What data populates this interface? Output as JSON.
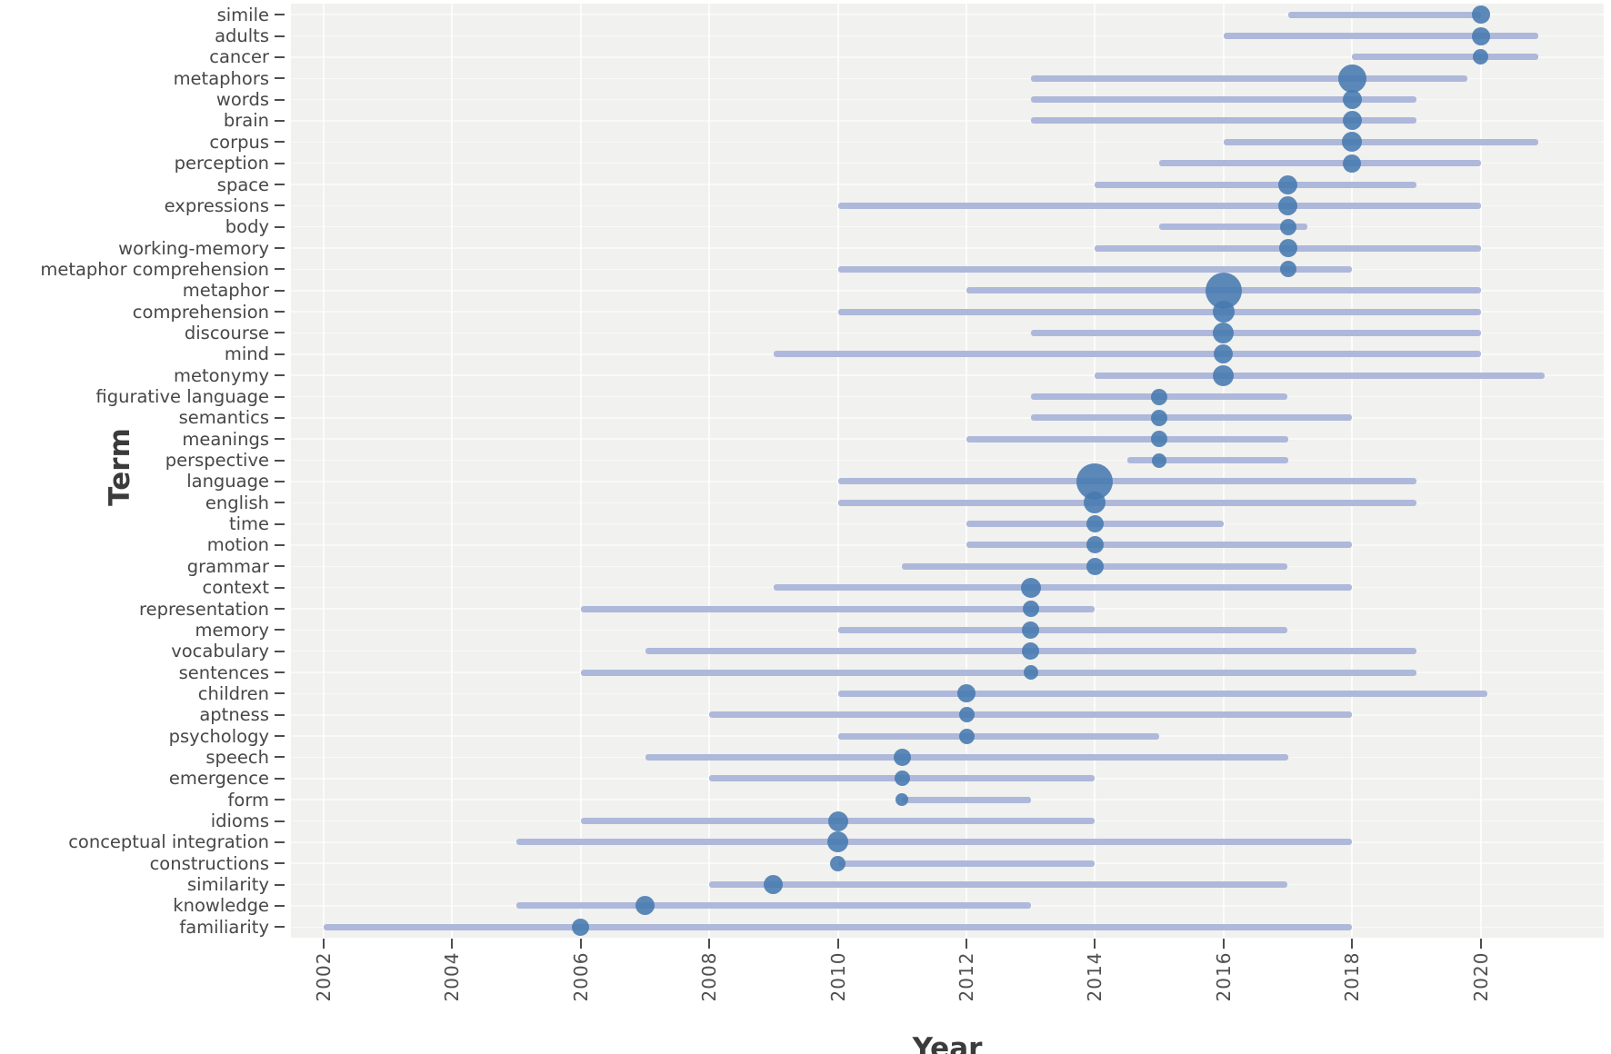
{
  "figure": {
    "x_axis_title": "Year",
    "y_axis_title": "Term",
    "colors": {
      "plot_background": "#f1f1ef",
      "gridline": "#ffffff",
      "range_line": "#aeb8da",
      "dot": "#4579af",
      "axis_text": "#474747",
      "axis_title_text": "#3b3b3b",
      "tick_mark": "#4d4d4d"
    }
  },
  "chart_data": {
    "type": "scatter",
    "subtype": "dot_with_range_timeline",
    "title": "",
    "xlabel": "Year",
    "ylabel": "Term",
    "x_domain": [
      2001.5,
      2021.9
    ],
    "x_ticks": [
      2002,
      2004,
      2006,
      2008,
      2010,
      2012,
      2014,
      2016,
      2018,
      2020
    ],
    "grid": true,
    "legend_position": "none",
    "terms": [
      {
        "label": "simile",
        "start": 2017,
        "end": 2020,
        "dot": 2020,
        "r": 10
      },
      {
        "label": "adults",
        "start": 2016,
        "end": 2020.9,
        "dot": 2020,
        "r": 10
      },
      {
        "label": "cancer",
        "start": 2018,
        "end": 2020.9,
        "dot": 2020,
        "r": 8.5
      },
      {
        "label": "metaphors",
        "start": 2013,
        "end": 2019.8,
        "dot": 2018,
        "r": 15.5
      },
      {
        "label": "words",
        "start": 2013,
        "end": 2019,
        "dot": 2018,
        "r": 10.5
      },
      {
        "label": "brain",
        "start": 2013,
        "end": 2019,
        "dot": 2018,
        "r": 10.5
      },
      {
        "label": "corpus",
        "start": 2016,
        "end": 2020.9,
        "dot": 2018,
        "r": 11
      },
      {
        "label": "perception",
        "start": 2015,
        "end": 2020,
        "dot": 2018,
        "r": 10
      },
      {
        "label": "space",
        "start": 2014,
        "end": 2019,
        "dot": 2017,
        "r": 10.5
      },
      {
        "label": "expressions",
        "start": 2010,
        "end": 2020,
        "dot": 2017,
        "r": 10.5
      },
      {
        "label": "body",
        "start": 2015,
        "end": 2017.3,
        "dot": 2017,
        "r": 9
      },
      {
        "label": "working-memory",
        "start": 2014,
        "end": 2020,
        "dot": 2017,
        "r": 10
      },
      {
        "label": "metaphor comprehension",
        "start": 2010,
        "end": 2018,
        "dot": 2017,
        "r": 9
      },
      {
        "label": "metaphor",
        "start": 2012,
        "end": 2020,
        "dot": 2016,
        "r": 20
      },
      {
        "label": "comprehension",
        "start": 2010,
        "end": 2020,
        "dot": 2016,
        "r": 12
      },
      {
        "label": "discourse",
        "start": 2013,
        "end": 2020,
        "dot": 2016,
        "r": 11.5
      },
      {
        "label": "mind",
        "start": 2009,
        "end": 2020,
        "dot": 2016,
        "r": 10.5
      },
      {
        "label": "metonymy",
        "start": 2014,
        "end": 2021,
        "dot": 2016,
        "r": 11.5
      },
      {
        "label": "figurative language",
        "start": 2013,
        "end": 2017,
        "dot": 2015,
        "r": 9
      },
      {
        "label": "semantics",
        "start": 2013,
        "end": 2018,
        "dot": 2015,
        "r": 9
      },
      {
        "label": "meanings",
        "start": 2012,
        "end": 2017,
        "dot": 2015,
        "r": 9
      },
      {
        "label": "perspective",
        "start": 2014.5,
        "end": 2017,
        "dot": 2015,
        "r": 8
      },
      {
        "label": "language",
        "start": 2010,
        "end": 2019,
        "dot": 2014,
        "r": 20
      },
      {
        "label": "english",
        "start": 2010,
        "end": 2019,
        "dot": 2014,
        "r": 12
      },
      {
        "label": "time",
        "start": 2012,
        "end": 2016,
        "dot": 2014,
        "r": 9.5
      },
      {
        "label": "motion",
        "start": 2012,
        "end": 2018,
        "dot": 2014,
        "r": 9.5
      },
      {
        "label": "grammar",
        "start": 2011,
        "end": 2017,
        "dot": 2014,
        "r": 9.5
      },
      {
        "label": "context",
        "start": 2009,
        "end": 2018,
        "dot": 2013,
        "r": 11
      },
      {
        "label": "representation",
        "start": 2006,
        "end": 2014,
        "dot": 2013,
        "r": 9
      },
      {
        "label": "memory",
        "start": 2010,
        "end": 2017,
        "dot": 2013,
        "r": 9.5
      },
      {
        "label": "vocabulary",
        "start": 2007,
        "end": 2019,
        "dot": 2013,
        "r": 9.5
      },
      {
        "label": "sentences",
        "start": 2006,
        "end": 2019,
        "dot": 2013,
        "r": 8
      },
      {
        "label": "children",
        "start": 2010,
        "end": 2020.1,
        "dot": 2012,
        "r": 10
      },
      {
        "label": "aptness",
        "start": 2008,
        "end": 2018,
        "dot": 2012,
        "r": 8.5
      },
      {
        "label": "psychology",
        "start": 2010,
        "end": 2015,
        "dot": 2012,
        "r": 8.5
      },
      {
        "label": "speech",
        "start": 2007,
        "end": 2017,
        "dot": 2011,
        "r": 9.5
      },
      {
        "label": "emergence",
        "start": 2008,
        "end": 2014,
        "dot": 2011,
        "r": 8.5
      },
      {
        "label": "form",
        "start": 2011,
        "end": 2013,
        "dot": 2011,
        "r": 7
      },
      {
        "label": "idioms",
        "start": 2006,
        "end": 2014,
        "dot": 2010,
        "r": 11
      },
      {
        "label": "conceptual integration",
        "start": 2005,
        "end": 2018,
        "dot": 2010,
        "r": 11.5
      },
      {
        "label": "constructions",
        "start": 2010,
        "end": 2014,
        "dot": 2010,
        "r": 8.5
      },
      {
        "label": "similarity",
        "start": 2008,
        "end": 2017,
        "dot": 2009,
        "r": 10.5
      },
      {
        "label": "knowledge",
        "start": 2005,
        "end": 2013,
        "dot": 2007,
        "r": 10.5
      },
      {
        "label": "familiarity",
        "start": 2002,
        "end": 2018,
        "dot": 2006,
        "r": 9.5
      }
    ]
  }
}
